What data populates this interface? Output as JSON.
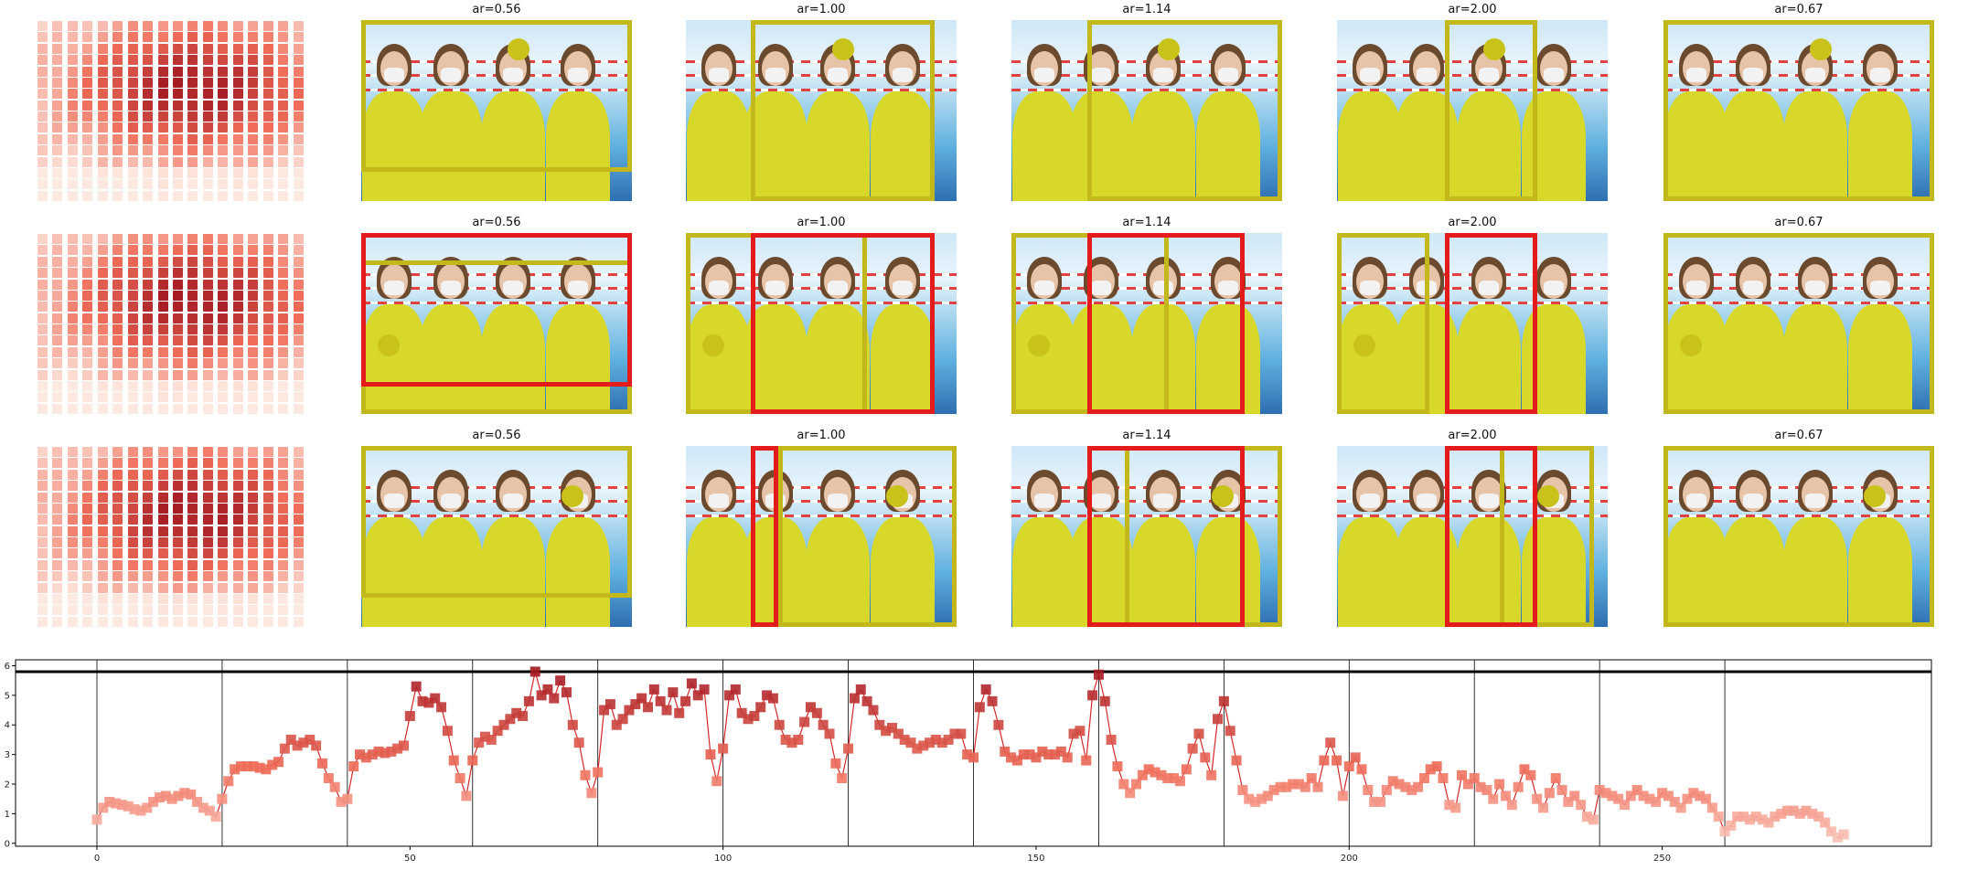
{
  "colors": {
    "yellow_box": "#c3b81b",
    "red_box": "#e31b1b",
    "marker_dot": "#c9c21a",
    "line": "#d62728",
    "threshold": "#000000"
  },
  "panel_titles": [
    [
      "ar=0.56",
      "ar=1.00",
      "ar=1.14",
      "ar=2.00",
      "ar=0.67"
    ],
    [
      "ar=0.56",
      "ar=1.00",
      "ar=1.14",
      "ar=2.00",
      "ar=0.67"
    ],
    [
      "ar=0.56",
      "ar=1.00",
      "ar=1.14",
      "ar=2.00",
      "ar=0.67"
    ]
  ],
  "chart_data": {
    "type": "line",
    "x_ticks": [
      0,
      50,
      100,
      150,
      200,
      250
    ],
    "y_ticks": [
      0,
      1,
      2,
      3,
      4,
      5,
      6
    ],
    "xlim": [
      -13,
      293
    ],
    "ylim": [
      -0.1,
      6.2
    ],
    "threshold": 5.8,
    "segment_boundaries": [
      0,
      20,
      40,
      60,
      80,
      100,
      120,
      140,
      160,
      180,
      200,
      220,
      240,
      260
    ],
    "x": [
      0,
      1,
      2,
      3,
      4,
      5,
      6,
      7,
      8,
      9,
      10,
      11,
      12,
      13,
      14,
      15,
      16,
      17,
      18,
      19,
      20,
      21,
      22,
      23,
      24,
      25,
      26,
      27,
      28,
      29,
      30,
      31,
      32,
      33,
      34,
      35,
      36,
      37,
      38,
      39,
      40,
      41,
      42,
      43,
      44,
      45,
      46,
      47,
      48,
      49,
      50,
      51,
      52,
      53,
      54,
      55,
      56,
      57,
      58,
      59,
      60,
      61,
      62,
      63,
      64,
      65,
      66,
      67,
      68,
      69,
      70,
      71,
      72,
      73,
      74,
      75,
      76,
      77,
      78,
      79,
      80,
      81,
      82,
      83,
      84,
      85,
      86,
      87,
      88,
      89,
      90,
      91,
      92,
      93,
      94,
      95,
      96,
      97,
      98,
      99,
      100,
      101,
      102,
      103,
      104,
      105,
      106,
      107,
      108,
      109,
      110,
      111,
      112,
      113,
      114,
      115,
      116,
      117,
      118,
      119,
      120,
      121,
      122,
      123,
      124,
      125,
      126,
      127,
      128,
      129,
      130,
      131,
      132,
      133,
      134,
      135,
      136,
      137,
      138,
      139,
      140,
      141,
      142,
      143,
      144,
      145,
      146,
      147,
      148,
      149,
      150,
      151,
      152,
      153,
      154,
      155,
      156,
      157,
      158,
      159,
      160,
      161,
      162,
      163,
      164,
      165,
      166,
      167,
      168,
      169,
      170,
      171,
      172,
      173,
      174,
      175,
      176,
      177,
      178,
      179,
      180,
      181,
      182,
      183,
      184,
      185,
      186,
      187,
      188,
      189,
      190,
      191,
      192,
      193,
      194,
      195,
      196,
      197,
      198,
      199,
      200,
      201,
      202,
      203,
      204,
      205,
      206,
      207,
      208,
      209,
      210,
      211,
      212,
      213,
      214,
      215,
      216,
      217,
      218,
      219,
      220,
      221,
      222,
      223,
      224,
      225,
      226,
      227,
      228,
      229,
      230,
      231,
      232,
      233,
      234,
      235,
      236,
      237,
      238,
      239,
      240,
      241,
      242,
      243,
      244,
      245,
      246,
      247,
      248,
      249,
      250,
      251,
      252,
      253,
      254,
      255,
      256,
      257,
      258,
      259,
      260,
      261,
      262,
      263,
      264,
      265,
      266,
      267,
      268,
      269,
      270,
      271,
      272,
      273,
      274,
      275,
      276,
      277,
      278,
      279
    ],
    "y": [
      0.8,
      1.2,
      1.4,
      1.35,
      1.3,
      1.25,
      1.15,
      1.1,
      1.2,
      1.4,
      1.55,
      1.6,
      1.5,
      1.6,
      1.7,
      1.65,
      1.4,
      1.2,
      1.1,
      0.9,
      1.5,
      2.1,
      2.5,
      2.6,
      2.6,
      2.6,
      2.55,
      2.5,
      2.65,
      2.75,
      3.2,
      3.5,
      3.3,
      3.4,
      3.5,
      3.3,
      2.7,
      2.2,
      1.9,
      1.4,
      1.5,
      2.6,
      3.0,
      2.9,
      3.0,
      3.1,
      3.05,
      3.1,
      3.2,
      3.3,
      4.3,
      5.3,
      4.8,
      4.75,
      4.9,
      4.6,
      3.8,
      2.8,
      2.2,
      1.6,
      2.8,
      3.4,
      3.6,
      3.5,
      3.8,
      4.0,
      4.2,
      4.4,
      4.3,
      4.8,
      5.8,
      5.0,
      5.2,
      4.9,
      5.5,
      5.1,
      4.0,
      3.4,
      2.3,
      1.7,
      2.4,
      4.5,
      4.7,
      4.0,
      4.2,
      4.5,
      4.7,
      4.9,
      4.6,
      5.2,
      4.8,
      4.5,
      5.1,
      4.4,
      4.8,
      5.4,
      5.0,
      5.2,
      3.0,
      2.1,
      3.2,
      5.0,
      5.2,
      4.4,
      4.2,
      4.3,
      4.6,
      5.0,
      4.9,
      4.0,
      3.5,
      3.4,
      3.5,
      4.1,
      4.6,
      4.4,
      4.0,
      3.7,
      2.7,
      2.2,
      3.2,
      4.9,
      5.2,
      4.8,
      4.5,
      4.0,
      3.8,
      3.9,
      3.7,
      3.5,
      3.4,
      3.2,
      3.3,
      3.4,
      3.5,
      3.4,
      3.5,
      3.7,
      3.7,
      3.0,
      2.9,
      4.6,
      5.2,
      4.8,
      4.0,
      3.1,
      2.9,
      2.8,
      3.0,
      3.0,
      2.9,
      3.1,
      3.0,
      3.0,
      3.1,
      2.9,
      3.7,
      3.8,
      2.8,
      5.0,
      5.7,
      4.8,
      3.5,
      2.6,
      2.0,
      1.7,
      2.0,
      2.3,
      2.5,
      2.4,
      2.3,
      2.2,
      2.2,
      2.1,
      2.5,
      3.2,
      3.7,
      2.9,
      2.3,
      4.2,
      4.8,
      3.8,
      2.8,
      1.8,
      1.5,
      1.4,
      1.5,
      1.6,
      1.8,
      1.9,
      1.9,
      2.0,
      2.0,
      1.9,
      2.2,
      1.9,
      2.8,
      3.4,
      2.8,
      1.6,
      2.6,
      2.9,
      2.5,
      1.8,
      1.4,
      1.4,
      1.8,
      2.1,
      2.0,
      1.9,
      1.8,
      1.9,
      2.2,
      2.5,
      2.6,
      2.2,
      1.3,
      1.2,
      2.3,
      2.0,
      2.2,
      1.9,
      1.8,
      1.5,
      2.0,
      1.6,
      1.3,
      1.9,
      2.5,
      2.3,
      1.5,
      1.2,
      1.7,
      2.2,
      1.8,
      1.4,
      1.6,
      1.3,
      0.9,
      0.8,
      1.8,
      1.7,
      1.6,
      1.5,
      1.3,
      1.6,
      1.8,
      1.6,
      1.5,
      1.4,
      1.7,
      1.6,
      1.4,
      1.2,
      1.5,
      1.7,
      1.6,
      1.5,
      1.2,
      0.9,
      0.4,
      0.6,
      0.9,
      0.9,
      0.8,
      0.9,
      0.8,
      0.7,
      0.9,
      1.0,
      1.1,
      1.1,
      1.0,
      1.1,
      1.0,
      0.9,
      0.7,
      0.4,
      0.2,
      0.3
    ]
  }
}
